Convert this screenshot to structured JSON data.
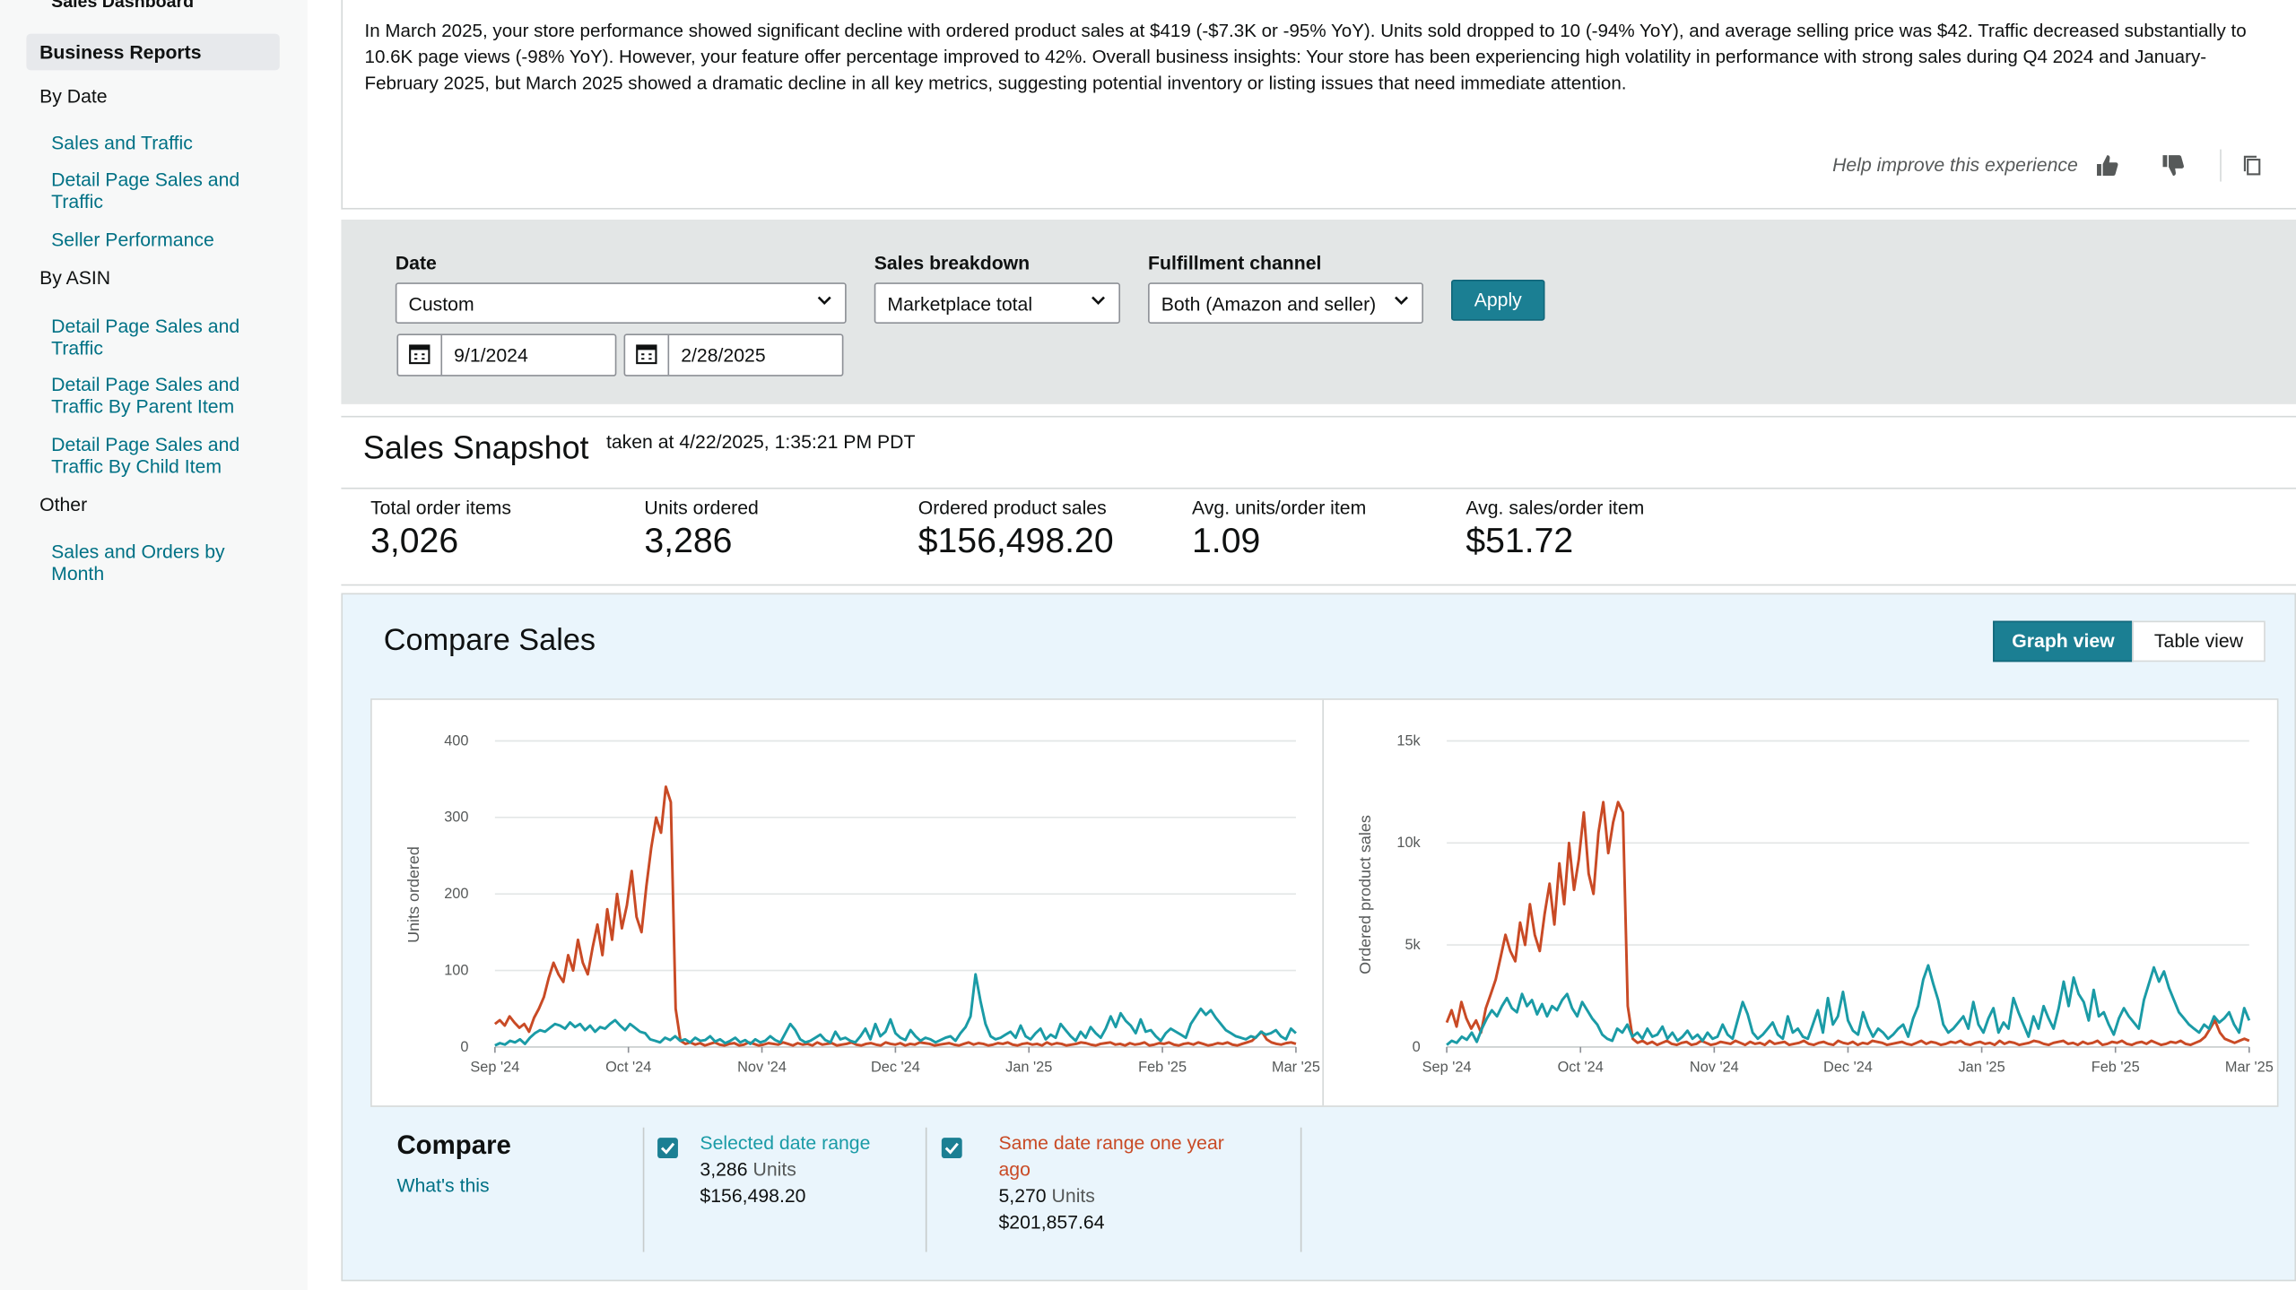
{
  "sidebar": {
    "top_item": "Sales Dashboard",
    "active_item": "Business Reports",
    "sections": [
      {
        "title": "By Date",
        "links": [
          "Sales and Traffic",
          "Detail Page Sales and Traffic",
          "Seller Performance"
        ]
      },
      {
        "title": "By ASIN",
        "links": [
          "Detail Page Sales and Traffic",
          "Detail Page Sales and Traffic By Parent Item",
          "Detail Page Sales and Traffic By Child Item"
        ]
      },
      {
        "title": "Other",
        "links": [
          "Sales and Orders by Month"
        ]
      }
    ]
  },
  "insight": {
    "text": "In March 2025, your store performance showed significant decline with ordered product sales at $419 (-$7.3K or -95% YoY). Units sold dropped to 10 (-94% YoY), and average selling price was $42. Traffic decreased substantially to 10.6K page views (-98% YoY). However, your feature offer percentage improved to 42%. Overall business insights: Your store has been experiencing high volatility in performance with strong sales during Q4 2024 and January-February 2025, but March 2025 showed a dramatic decline in all key metrics, suggesting potential inventory or listing issues that need immediate attention.",
    "help_text": "Help improve this experience"
  },
  "filters": {
    "date_label": "Date",
    "date_value": "Custom",
    "start_date": "9/1/2024",
    "end_date": "2/28/2025",
    "breakdown_label": "Sales breakdown",
    "breakdown_value": "Marketplace total",
    "fulfillment_label": "Fulfillment channel",
    "fulfillment_value": "Both (Amazon and seller)",
    "apply_label": "Apply"
  },
  "snapshot": {
    "title": "Sales Snapshot",
    "taken_at": "taken at 4/22/2025, 1:35:21 PM PDT",
    "metrics": [
      {
        "label": "Total order items",
        "value": "3,026"
      },
      {
        "label": "Units ordered",
        "value": "3,286"
      },
      {
        "label": "Ordered product sales",
        "value": "$156,498.20"
      },
      {
        "label": "Avg. units/order item",
        "value": "1.09"
      },
      {
        "label": "Avg. sales/order item",
        "value": "$51.72"
      }
    ]
  },
  "compare": {
    "title": "Compare Sales",
    "graph_view_label": "Graph view",
    "table_view_label": "Table view",
    "legend_title": "Compare",
    "whats_this": "What's this",
    "selected": {
      "label": "Selected date range",
      "units": "3,286",
      "units_suffix": "Units",
      "sales": "$156,498.20"
    },
    "previous": {
      "label": "Same date range one year ago",
      "units": "5,270",
      "units_suffix": "Units",
      "sales": "$201,857.64"
    }
  },
  "colors": {
    "selected": "#1a9ba6",
    "previous": "#c94a25",
    "accent": "#1b7f93",
    "link": "#007185"
  },
  "chart_data": [
    {
      "type": "line",
      "ylabel": "Units ordered",
      "ylim": [
        0,
        400
      ],
      "yticks": [
        "0",
        "100",
        "200",
        "300",
        "400"
      ],
      "xticks": [
        "Sep '24",
        "Oct '24",
        "Nov '24",
        "Dec '24",
        "Jan '25",
        "Feb '25",
        "Mar '25"
      ],
      "series": [
        {
          "name": "Selected date range",
          "color": "#1a9ba6",
          "values": [
            2,
            5,
            3,
            8,
            6,
            10,
            4,
            12,
            18,
            22,
            20,
            25,
            30,
            28,
            24,
            32,
            26,
            30,
            22,
            28,
            20,
            26,
            24,
            30,
            35,
            28,
            22,
            30,
            25,
            20,
            18,
            10,
            8,
            6,
            12,
            9,
            14,
            8,
            10,
            6,
            12,
            8,
            9,
            14,
            7,
            10,
            5,
            8,
            12,
            6,
            9,
            4,
            10,
            6,
            8,
            14,
            9,
            6,
            18,
            30,
            22,
            10,
            6,
            8,
            12,
            16,
            9,
            6,
            20,
            10,
            12,
            8,
            6,
            14,
            24,
            10,
            30,
            14,
            20,
            36,
            18,
            12,
            9,
            22,
            14,
            8,
            12,
            10,
            6,
            9,
            12,
            14,
            8,
            18,
            26,
            40,
            95,
            60,
            30,
            14,
            10,
            12,
            16,
            20,
            12,
            28,
            14,
            10,
            18,
            24,
            10,
            16,
            12,
            30,
            22,
            14,
            8,
            20,
            12,
            26,
            18,
            12,
            24,
            40,
            26,
            44,
            34,
            28,
            18,
            36,
            20,
            22,
            14,
            8,
            18,
            24,
            20,
            16,
            12,
            30,
            40,
            50,
            42,
            48,
            38,
            30,
            22,
            18,
            14,
            12,
            10,
            14,
            12,
            20,
            16,
            18,
            22,
            14,
            10,
            24,
            18
          ]
        },
        {
          "name": "Same date range one year ago",
          "color": "#c94a25",
          "values": [
            30,
            35,
            28,
            40,
            32,
            25,
            30,
            20,
            38,
            50,
            65,
            90,
            110,
            95,
            85,
            120,
            100,
            140,
            110,
            95,
            130,
            160,
            120,
            180,
            140,
            200,
            155,
            185,
            230,
            170,
            150,
            210,
            260,
            300,
            280,
            340,
            320,
            50,
            8,
            4,
            6,
            3,
            5,
            2,
            4,
            6,
            3,
            2,
            4,
            5,
            2,
            3,
            6,
            4,
            2,
            3,
            5,
            4,
            3,
            6,
            4,
            2,
            5,
            3,
            4,
            2,
            6,
            3,
            4,
            5,
            2,
            3,
            4,
            6,
            3,
            2,
            4,
            5,
            3,
            2,
            6,
            4,
            3,
            5,
            2,
            4,
            3,
            6,
            5,
            4,
            2,
            3,
            4,
            5,
            3,
            2,
            4,
            6,
            3,
            5,
            4,
            2,
            3,
            5,
            4,
            6,
            3,
            2,
            4,
            5,
            3,
            4,
            2,
            6,
            3,
            5,
            4,
            2,
            3,
            4,
            6,
            5,
            3,
            2,
            4,
            5,
            6,
            3,
            4,
            2,
            5,
            3,
            4,
            6,
            2,
            3,
            5,
            4,
            6,
            3,
            2,
            4,
            5,
            3,
            6,
            4,
            2,
            3,
            5,
            4,
            6,
            3,
            2,
            4,
            6,
            8,
            14,
            20,
            10,
            6,
            4,
            3,
            5,
            6,
            4
          ]
        }
      ]
    },
    {
      "type": "line",
      "ylabel": "Ordered product sales",
      "ylim": [
        0,
        15000
      ],
      "yticks": [
        "0",
        "5k",
        "10k",
        "15k"
      ],
      "xticks": [
        "Sep '24",
        "Oct '24",
        "Nov '24",
        "Dec '24",
        "Jan '25",
        "Feb '25",
        "Mar '25"
      ],
      "series": [
        {
          "name": "Selected date range",
          "color": "#1a9ba6",
          "values": [
            100,
            300,
            200,
            500,
            350,
            700,
            250,
            900,
            1400,
            1800,
            1500,
            2000,
            2400,
            1900,
            1700,
            2600,
            2000,
            2300,
            1600,
            2100,
            1500,
            2000,
            1800,
            2300,
            2600,
            1900,
            1500,
            2200,
            1800,
            1400,
            1100,
            600,
            400,
            300,
            900,
            700,
            1100,
            500,
            700,
            400,
            900,
            500,
            600,
            1000,
            400,
            700,
            300,
            500,
            800,
            400,
            600,
            300,
            700,
            400,
            500,
            1100,
            600,
            400,
            1300,
            2200,
            1600,
            700,
            400,
            600,
            900,
            1200,
            600,
            400,
            1500,
            700,
            900,
            500,
            400,
            1100,
            1800,
            700,
            2400,
            1100,
            1500,
            2700,
            1300,
            800,
            600,
            1700,
            1000,
            500,
            900,
            700,
            400,
            600,
            900,
            1100,
            500,
            1400,
            2000,
            3300,
            4000,
            3100,
            2300,
            1100,
            700,
            900,
            1200,
            1500,
            900,
            2200,
            1100,
            700,
            1400,
            1900,
            700,
            1200,
            900,
            2400,
            1700,
            1100,
            500,
            1500,
            900,
            2000,
            1400,
            900,
            1900,
            3200,
            2000,
            3400,
            2600,
            2200,
            1300,
            2800,
            1500,
            1700,
            1100,
            600,
            1400,
            1900,
            1500,
            1200,
            900,
            2300,
            3100,
            3900,
            3200,
            3700,
            2900,
            2300,
            1700,
            1400,
            1100,
            900,
            700,
            1100,
            900,
            1500,
            1200,
            1400,
            1700,
            1100,
            700,
            1900,
            1300
          ]
        },
        {
          "name": "Same date range one year ago",
          "color": "#c94a25",
          "values": [
            1200,
            1800,
            1000,
            2200,
            1400,
            900,
            1300,
            700,
            1900,
            2600,
            3300,
            4400,
            5500,
            4700,
            4200,
            6100,
            5000,
            7000,
            5500,
            4700,
            6500,
            8000,
            6000,
            9000,
            7000,
            10000,
            7700,
            9200,
            11500,
            8500,
            7500,
            10500,
            12000,
            9500,
            11000,
            12000,
            11500,
            2000,
            400,
            200,
            300,
            150,
            250,
            100,
            200,
            300,
            150,
            100,
            200,
            250,
            100,
            150,
            300,
            200,
            100,
            150,
            250,
            200,
            150,
            300,
            200,
            100,
            250,
            150,
            200,
            100,
            300,
            150,
            200,
            250,
            100,
            150,
            200,
            300,
            150,
            100,
            200,
            250,
            150,
            100,
            300,
            200,
            150,
            250,
            100,
            200,
            150,
            300,
            250,
            200,
            100,
            150,
            200,
            250,
            150,
            100,
            200,
            300,
            150,
            250,
            200,
            100,
            150,
            250,
            200,
            300,
            150,
            100,
            200,
            250,
            150,
            200,
            100,
            300,
            150,
            250,
            200,
            100,
            150,
            200,
            300,
            250,
            150,
            100,
            200,
            250,
            300,
            150,
            200,
            100,
            250,
            150,
            200,
            300,
            100,
            150,
            250,
            200,
            300,
            150,
            100,
            200,
            250,
            150,
            300,
            200,
            100,
            150,
            250,
            200,
            300,
            150,
            100,
            200,
            300,
            500,
            900,
            1300,
            700,
            400,
            300,
            200,
            300,
            400,
            300
          ]
        }
      ]
    }
  ]
}
